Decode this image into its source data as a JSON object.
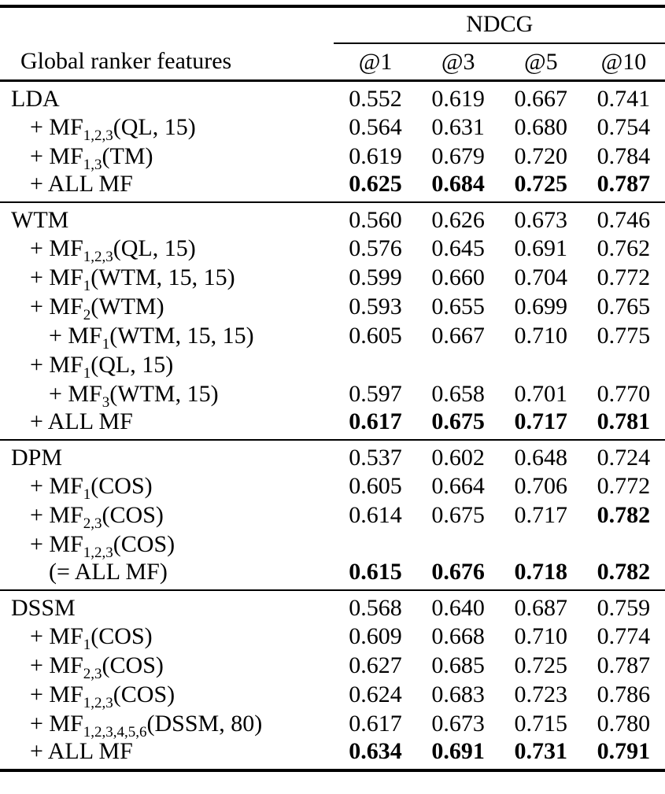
{
  "table": {
    "group_header": "NDCG",
    "row_header": "Global ranker features",
    "columns": [
      "@1",
      "@3",
      "@5",
      "@10"
    ],
    "sections": [
      {
        "rows": [
          {
            "pre": "LDA",
            "sub": "",
            "post": "",
            "values": [
              "0.552",
              "0.619",
              "0.667",
              "0.741"
            ],
            "cls": [
              "",
              "",
              "",
              ""
            ]
          },
          {
            "pre": "+ MF",
            "sub": "1,2,3",
            "post": "(QL, 15)",
            "values": [
              "0.564",
              "0.631",
              "0.680",
              "0.754"
            ],
            "cls": [
              "",
              "",
              "",
              ""
            ]
          },
          {
            "pre": "+ MF",
            "sub": "1,3",
            "post": "(TM)",
            "values": [
              "0.619",
              "0.679",
              "0.720",
              "0.784"
            ],
            "cls": [
              "",
              "",
              "",
              ""
            ]
          },
          {
            "pre": "+ ALL MF",
            "sub": "",
            "post": "",
            "values": [
              "0.625",
              "0.684",
              "0.725",
              "0.787"
            ],
            "cls": [
              "b",
              "b",
              "b",
              "b"
            ]
          }
        ]
      },
      {
        "rows": [
          {
            "pre": "WTM",
            "sub": "",
            "post": "",
            "values": [
              "0.560",
              "0.626",
              "0.673",
              "0.746"
            ],
            "cls": [
              "",
              "",
              "",
              ""
            ]
          },
          {
            "pre": "+ MF",
            "sub": "1,2,3",
            "post": "(QL, 15)",
            "values": [
              "0.576",
              "0.645",
              "0.691",
              "0.762"
            ],
            "cls": [
              "",
              "",
              "",
              ""
            ]
          },
          {
            "pre": "+ MF",
            "sub": "1",
            "post": "(WTM, 15, 15)",
            "values": [
              "0.599",
              "0.660",
              "0.704",
              "0.772"
            ],
            "cls": [
              "",
              "",
              "",
              ""
            ]
          },
          {
            "pre": "+ MF",
            "sub": "2",
            "post": "(WTM)",
            "values": [
              "0.593",
              "0.655",
              "0.699",
              "0.765"
            ],
            "cls": [
              "",
              "",
              "",
              ""
            ]
          },
          {
            "pre": "+ MF",
            "sub": "1",
            "post": "(WTM, 15, 15)",
            "values": [
              "0.605",
              "0.667",
              "0.710",
              "0.775"
            ],
            "cls": [
              "",
              "",
              "",
              ""
            ]
          },
          {
            "pre": "+ MF",
            "sub": "1",
            "post": "(QL, 15)",
            "values": [
              "",
              "",
              "",
              ""
            ],
            "cls": [
              "",
              "",
              "",
              ""
            ]
          },
          {
            "pre": "+ MF",
            "sub": "3",
            "post": "(WTM, 15)",
            "values": [
              "0.597",
              "0.658",
              "0.701",
              "0.770"
            ],
            "cls": [
              "",
              "",
              "",
              ""
            ]
          },
          {
            "pre": "+ ALL MF",
            "sub": "",
            "post": "",
            "values": [
              "0.617",
              "0.675",
              "0.717",
              "0.781"
            ],
            "cls": [
              "b",
              "b",
              "b",
              "b"
            ]
          }
        ]
      },
      {
        "rows": [
          {
            "pre": "DPM",
            "sub": "",
            "post": "",
            "values": [
              "0.537",
              "0.602",
              "0.648",
              "0.724"
            ],
            "cls": [
              "",
              "",
              "",
              ""
            ]
          },
          {
            "pre": "+ MF",
            "sub": "1",
            "post": "(COS)",
            "values": [
              "0.605",
              "0.664",
              "0.706",
              "0.772"
            ],
            "cls": [
              "",
              "",
              "",
              ""
            ]
          },
          {
            "pre": "+ MF",
            "sub": "2,3",
            "post": "(COS)",
            "values": [
              "0.614",
              "0.675",
              "0.717",
              "0.782"
            ],
            "cls": [
              "",
              "",
              "",
              "b"
            ]
          },
          {
            "pre": "+ MF",
            "sub": "1,2,3",
            "post": "(COS)",
            "values": [
              "",
              "",
              "",
              ""
            ],
            "cls": [
              "",
              "",
              "",
              ""
            ]
          },
          {
            "pre": "(= ALL MF)",
            "sub": "",
            "post": "",
            "values": [
              "0.615",
              "0.676",
              "0.718",
              "0.782"
            ],
            "cls": [
              "b",
              "b",
              "b",
              "b"
            ]
          }
        ]
      },
      {
        "rows": [
          {
            "pre": "DSSM",
            "sub": "",
            "post": "",
            "values": [
              "0.568",
              "0.640",
              "0.687",
              "0.759"
            ],
            "cls": [
              "",
              "",
              "",
              ""
            ]
          },
          {
            "pre": "+ MF",
            "sub": "1",
            "post": "(COS)",
            "values": [
              "0.609",
              "0.668",
              "0.710",
              "0.774"
            ],
            "cls": [
              "",
              "",
              "",
              ""
            ]
          },
          {
            "pre": "+ MF",
            "sub": "2,3",
            "post": "(COS)",
            "values": [
              "0.627",
              "0.685",
              "0.725",
              "0.787"
            ],
            "cls": [
              "",
              "",
              "",
              ""
            ]
          },
          {
            "pre": "+ MF",
            "sub": "1,2,3",
            "post": "(COS)",
            "values": [
              "0.624",
              "0.683",
              "0.723",
              "0.786"
            ],
            "cls": [
              "",
              "",
              "",
              ""
            ]
          },
          {
            "pre": "+ MF",
            "sub": "1,2,3,4,5,6",
            "post": "(DSSM, 80)",
            "values": [
              "0.617",
              "0.673",
              "0.715",
              "0.780"
            ],
            "cls": [
              "",
              "",
              "",
              ""
            ]
          },
          {
            "pre": "+ ALL MF",
            "sub": "",
            "post": "",
            "values": [
              "0.634",
              "0.691",
              "0.731",
              "0.791"
            ],
            "cls": [
              "b",
              "b",
              "b",
              "b"
            ]
          }
        ]
      }
    ]
  }
}
